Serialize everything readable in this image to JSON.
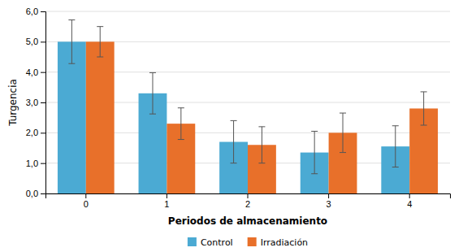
{
  "chart_data": {
    "type": "bar",
    "categories": [
      0,
      1,
      2,
      3,
      4
    ],
    "series": [
      {
        "name": "Control",
        "color": "#4BAAD3",
        "values": [
          5.0,
          3.3,
          1.7,
          1.35,
          1.55
        ],
        "errors": [
          0.72,
          0.68,
          0.7,
          0.7,
          0.68
        ]
      },
      {
        "name": "Irradiación",
        "color": "#E8702A",
        "values": [
          5.0,
          2.3,
          1.6,
          2.0,
          2.8
        ],
        "errors": [
          0.5,
          0.52,
          0.6,
          0.65,
          0.55
        ]
      }
    ],
    "xlabel": "Periodos de almacenamiento",
    "ylabel": "Turgencia",
    "ylim": [
      0,
      6.0
    ],
    "yticks": [
      {
        "value": 0.0,
        "label": "0,0"
      },
      {
        "value": 1.0,
        "label": "1,0"
      },
      {
        "value": 2.0,
        "label": "2,0"
      },
      {
        "value": 3.0,
        "label": "3,0"
      },
      {
        "value": 4.0,
        "label": "4,0"
      },
      {
        "value": 5.0,
        "label": "5,0"
      },
      {
        "value": 6.0,
        "label": "6,0"
      }
    ],
    "grid": true,
    "legend": "bottom"
  }
}
